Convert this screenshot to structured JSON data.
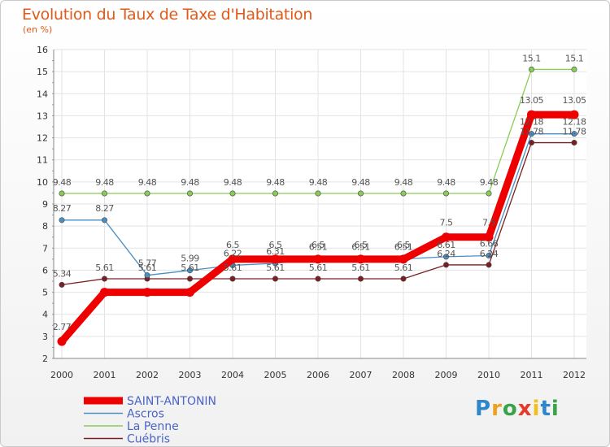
{
  "chart_data": {
    "type": "line",
    "title": "Evolution du Taux de Taxe d'Habitation",
    "subtitle": "(en %)",
    "xlabel": "",
    "ylabel": "",
    "ylim": [
      2,
      16
    ],
    "yticks": [
      2,
      3,
      4,
      5,
      6,
      7,
      8,
      9,
      10,
      11,
      12,
      13,
      14,
      15,
      16
    ],
    "categories": [
      "2000",
      "2001",
      "2002",
      "2003",
      "2004",
      "2005",
      "2006",
      "2007",
      "2008",
      "2009",
      "2010",
      "2011",
      "2012"
    ],
    "legend_position": "bottom-left",
    "series": [
      {
        "name": "SAINT-ANTONIN",
        "color": "#ee0000",
        "values": [
          2.77,
          5.0,
          5.0,
          5.0,
          6.5,
          6.5,
          6.5,
          6.5,
          6.5,
          7.5,
          7.5,
          13.05,
          13.05
        ],
        "labels": [
          "2.77",
          "",
          "",
          "",
          "6.5",
          "6.5",
          "6.5",
          "6.5",
          "6.5",
          "7.5",
          "7.5",
          "13.05",
          "13.05"
        ]
      },
      {
        "name": "Ascros",
        "color": "#4a8fc4",
        "values": [
          8.27,
          8.27,
          5.77,
          5.99,
          6.22,
          6.31,
          6.51,
          6.51,
          6.51,
          6.61,
          6.66,
          12.18,
          12.18
        ],
        "labels": [
          "8.27",
          "8.27",
          "5.77",
          "5.99",
          "6.22",
          "6.31",
          "6.51",
          "6.51",
          "6.51",
          "6.61",
          "6.66",
          "12.18",
          "12.18"
        ]
      },
      {
        "name": "La Penne",
        "color": "#88cc55",
        "values": [
          9.48,
          9.48,
          9.48,
          9.48,
          9.48,
          9.48,
          9.48,
          9.48,
          9.48,
          9.48,
          9.48,
          15.1,
          15.1
        ],
        "labels": [
          "9.48",
          "9.48",
          "9.48",
          "9.48",
          "9.48",
          "9.48",
          "9.48",
          "9.48",
          "9.48",
          "9.48",
          "9.48",
          "15.1",
          "15.1"
        ]
      },
      {
        "name": "Cuébris",
        "color": "#7a1f24",
        "values": [
          5.34,
          5.61,
          5.61,
          5.61,
          5.61,
          5.61,
          5.61,
          5.61,
          5.61,
          6.24,
          6.24,
          11.78,
          11.78
        ],
        "labels": [
          "5.34",
          "5.61",
          "5.61",
          "5.61",
          "5.61",
          "5.61",
          "5.61",
          "5.61",
          "5.61",
          "6.24",
          "6.24",
          "11.78",
          "11.78"
        ]
      }
    ]
  },
  "logo": {
    "letters": [
      "P",
      "r",
      "o",
      "x",
      "i",
      "t",
      "i"
    ]
  }
}
